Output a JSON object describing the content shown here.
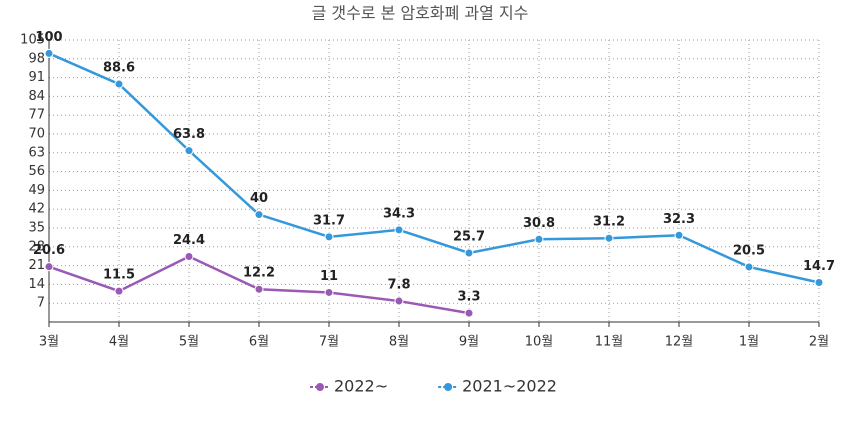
{
  "chart_data": {
    "type": "line",
    "title": "글 갯수로 본 암호화폐 과열 지수",
    "categories": [
      "3월",
      "4월",
      "5월",
      "6월",
      "7월",
      "8월",
      "9월",
      "10월",
      "11월",
      "12월",
      "1월",
      "2월"
    ],
    "series": [
      {
        "name": "2022~",
        "color": "#9b59b6",
        "values": [
          20.6,
          11.5,
          24.4,
          12.2,
          11,
          7.8,
          3.3,
          null,
          null,
          null,
          null,
          null
        ]
      },
      {
        "name": "2021~2022",
        "color": "#3498db",
        "values": [
          100,
          88.6,
          63.8,
          40,
          31.7,
          34.3,
          25.7,
          30.8,
          31.2,
          32.3,
          20.5,
          14.7
        ]
      }
    ],
    "ylim": [
      0,
      105
    ],
    "yticks": [
      7,
      14,
      21,
      28,
      35,
      42,
      49,
      56,
      63,
      70,
      77,
      84,
      91,
      98,
      105
    ],
    "grid": true,
    "legend": "bottom"
  }
}
